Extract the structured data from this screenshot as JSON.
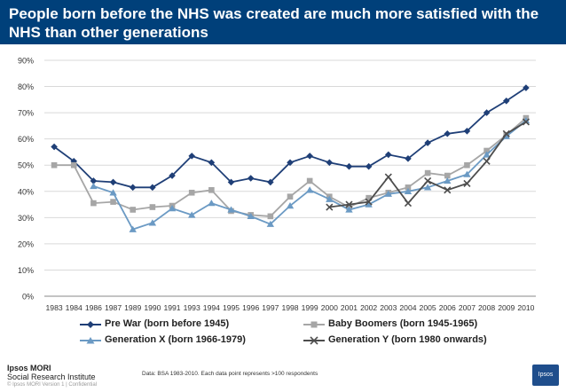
{
  "header": {
    "title": "People born before the NHS was created are much more satisfied with the NHS than other generations"
  },
  "chart_data": {
    "type": "line",
    "title": "People born before the NHS was created are much more satisfied with the NHS than other generations",
    "xlabel": "",
    "ylabel": "",
    "ylim": [
      0,
      90
    ],
    "yticks": [
      "0%",
      "10%",
      "20%",
      "30%",
      "40%",
      "50%",
      "60%",
      "70%",
      "80%",
      "90%"
    ],
    "ytick_values": [
      0,
      10,
      20,
      30,
      40,
      50,
      60,
      70,
      80,
      90
    ],
    "categories": [
      "1983",
      "1984",
      "1986",
      "1987",
      "1989",
      "1990",
      "1991",
      "1993",
      "1994",
      "1995",
      "1996",
      "1997",
      "1998",
      "1999",
      "2000",
      "2001",
      "2002",
      "2003",
      "2004",
      "2005",
      "2006",
      "2007",
      "2008",
      "2009",
      "2010"
    ],
    "grid": true,
    "legend_position": "bottom",
    "series": [
      {
        "name": "Pre War (born before 1945)",
        "color": "#1f3f77",
        "marker": "diamond",
        "values": [
          57,
          51.5,
          44,
          43.5,
          41.5,
          41.5,
          46,
          53.5,
          51,
          43.5,
          45,
          43.5,
          51,
          53.5,
          51,
          49.5,
          49.5,
          54,
          52.5,
          58.5,
          62,
          63,
          70,
          74.5,
          79.5
        ]
      },
      {
        "name": "Baby Boomers (born 1945-1965)",
        "color": "#a6a6a6",
        "marker": "square",
        "values": [
          50,
          50,
          35.5,
          36,
          33,
          34,
          34.5,
          39.5,
          40.5,
          32.5,
          31,
          30.5,
          38,
          44,
          38,
          34,
          37.5,
          39.5,
          41.5,
          47,
          46,
          50,
          55.5,
          61.5,
          68
        ]
      },
      {
        "name": "Generation X (born 1966-1979)",
        "color": "#6b9ac4",
        "marker": "triangle",
        "values": [
          null,
          null,
          42,
          39.5,
          25.5,
          28,
          33.5,
          31,
          35.5,
          33,
          30.5,
          27.5,
          34.5,
          40.5,
          37,
          33,
          35,
          39,
          40,
          41.5,
          44,
          46.5,
          54,
          61,
          67
        ]
      },
      {
        "name": "Generation Y (born 1980 onwards)",
        "color": "#4d4d4d",
        "marker": "x",
        "values": [
          null,
          null,
          null,
          null,
          null,
          null,
          null,
          null,
          null,
          null,
          null,
          null,
          null,
          null,
          34,
          35,
          36,
          45.5,
          35.5,
          44,
          40.5,
          43,
          51.5,
          62,
          66.5
        ]
      }
    ]
  },
  "footer": {
    "logo_line1": "Ipsos MORI",
    "logo_line2": "Social Research Institute",
    "copyright": "© Ipsos MORI     Version 1 | Confidential",
    "source": "Data: BSA 1983-2010. Each data point represents >100 respondents",
    "badge": "Ipsos"
  },
  "colors": {
    "title_bg": "#00407a",
    "gridline": "#d9d9d9",
    "axis": "#888888"
  }
}
